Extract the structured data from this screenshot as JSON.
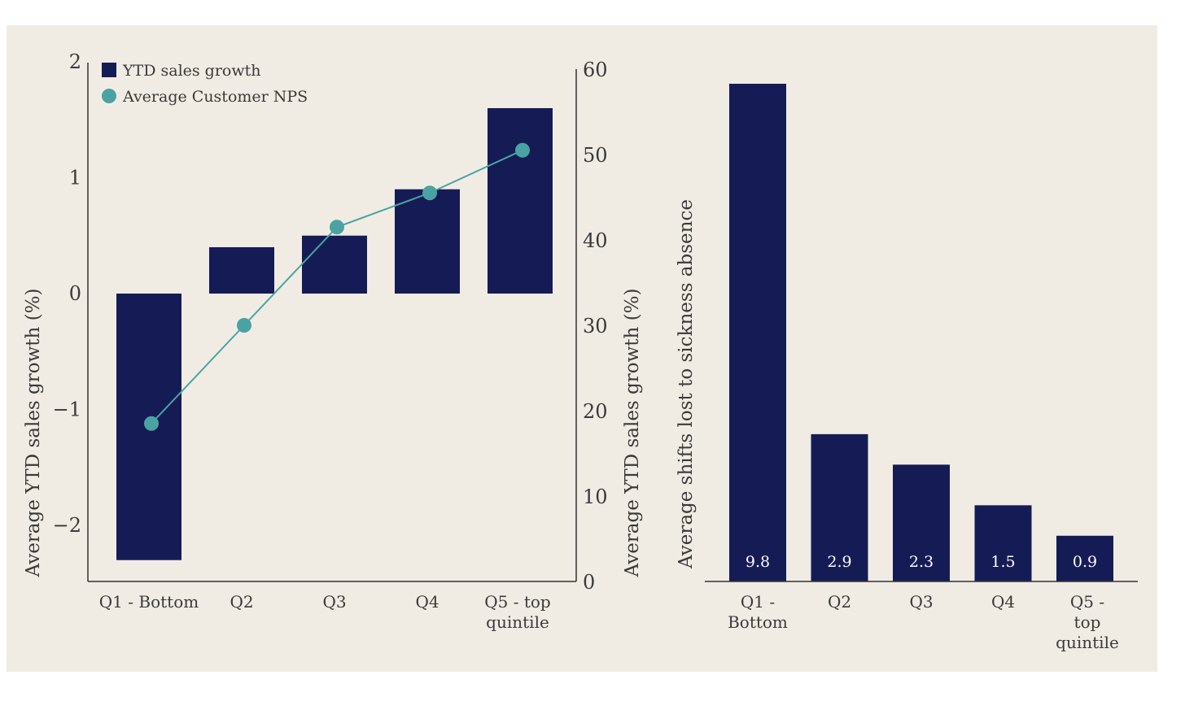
{
  "colors": {
    "background": "#f0ece4",
    "bar": "#151c55",
    "line": "#4aa3a2",
    "axis": "#333333"
  },
  "chart_data": [
    {
      "type": "bar",
      "categories": [
        "Q1 - Bottom",
        "Q2",
        "Q3",
        "Q4",
        "Q5 - top quintile"
      ],
      "ylabel": "Average YTD sales growth (%)",
      "y2label": "Average YTD sales growth (%)",
      "ylim": [
        -2.5,
        2
      ],
      "y2lim": [
        0,
        60
      ],
      "yticks": [
        "2",
        "1",
        "0",
        "−1",
        "−2"
      ],
      "y2ticks": [
        "60",
        "50",
        "40",
        "30",
        "20",
        "10",
        "0"
      ],
      "legend": [
        "YTD sales growth",
        "Average Customer NPS"
      ],
      "legend_position": "top-left",
      "series": [
        {
          "name": "YTD sales growth",
          "type": "bar",
          "axis": "left",
          "values": [
            -2.3,
            0.4,
            0.5,
            0.9,
            1.6
          ]
        },
        {
          "name": "Average Customer NPS",
          "type": "line",
          "axis": "right",
          "values": [
            18.5,
            30,
            41.5,
            45.5,
            50.5
          ]
        }
      ]
    },
    {
      "type": "bar",
      "categories": [
        "Q1 - Bottom",
        "Q2",
        "Q3",
        "Q4",
        "Q5 - top quintile"
      ],
      "ylabel": "Average  shifts lost to sickness absence",
      "values": [
        9.8,
        2.9,
        2.3,
        1.5,
        0.9
      ],
      "data_labels": [
        "9.8",
        "2.9",
        "2.3",
        "1.5",
        "0.9"
      ]
    }
  ]
}
